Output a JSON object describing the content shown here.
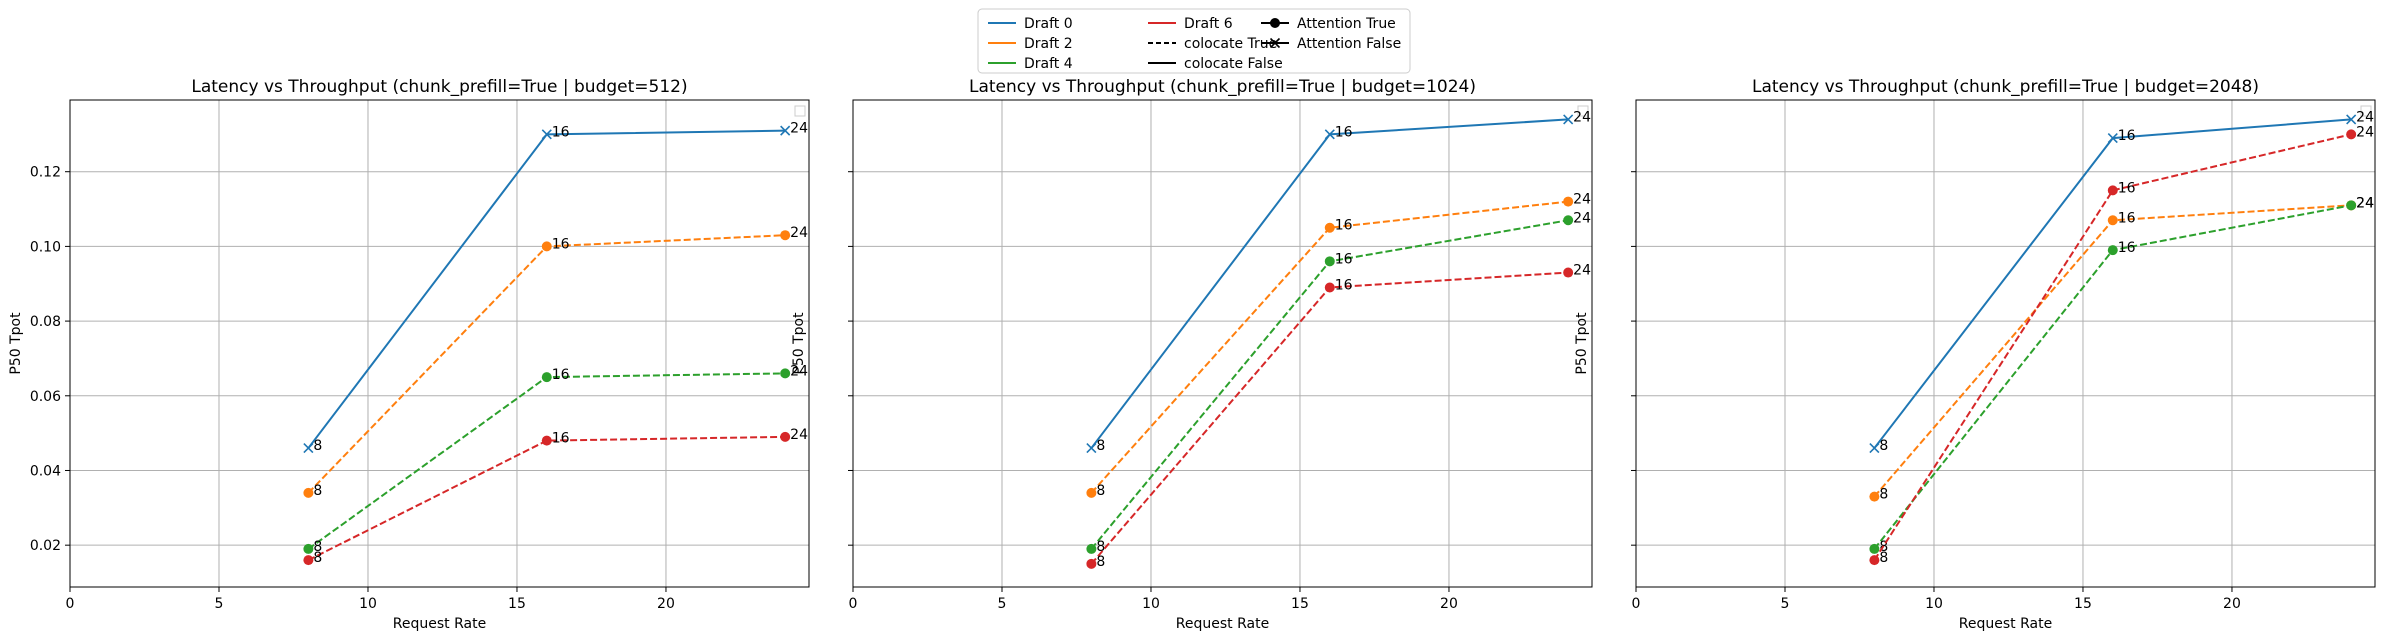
{
  "legend": {
    "placement": "top-center",
    "entries": [
      {
        "label": "Draft 0",
        "style": "line",
        "color": "#1f77b4"
      },
      {
        "label": "Draft 2",
        "style": "line",
        "color": "#ff7f0e"
      },
      {
        "label": "Draft 4",
        "style": "line",
        "color": "#2ca02c"
      },
      {
        "label": "Draft 6",
        "style": "line",
        "color": "#d62728"
      },
      {
        "label": "colocate True",
        "style": "dashed",
        "color": "#000000"
      },
      {
        "label": "colocate False",
        "style": "solid",
        "color": "#000000"
      },
      {
        "label": "Attention True",
        "style": "marker-circle",
        "color": "#000000"
      },
      {
        "label": "Attention False",
        "style": "marker-x",
        "color": "#000000"
      }
    ]
  },
  "chart_data": [
    {
      "type": "line",
      "title": "Latency vs Throughput (chunk_prefill=True | budget=512)",
      "xlabel": "Request Rate",
      "ylabel": "P50 Tpot",
      "xlim": [
        0,
        24.8
      ],
      "ylim": [
        0.0088,
        0.1392
      ],
      "xticks": [
        0,
        5,
        10,
        15,
        20
      ],
      "yticks": [
        0.02,
        0.04,
        0.06,
        0.08,
        0.1,
        0.12
      ],
      "ytick_labels": [
        "0.02",
        "0.04",
        "0.06",
        "0.08",
        "0.10",
        "0.12"
      ],
      "grid": true,
      "series": [
        {
          "name": "Draft 0",
          "color": "#1f77b4",
          "linestyle": "solid",
          "marker": "x",
          "x": [
            8,
            16,
            24
          ],
          "y": [
            0.046,
            0.13,
            0.131
          ],
          "labels": [
            "8",
            "16",
            "24"
          ]
        },
        {
          "name": "Draft 2",
          "color": "#ff7f0e",
          "linestyle": "dashed",
          "marker": "o",
          "x": [
            8,
            16,
            24
          ],
          "y": [
            0.034,
            0.1,
            0.103
          ],
          "labels": [
            "8",
            "16",
            "24"
          ]
        },
        {
          "name": "Draft 4",
          "color": "#2ca02c",
          "linestyle": "dashed",
          "marker": "o",
          "x": [
            8,
            16,
            24
          ],
          "y": [
            0.019,
            0.065,
            0.066
          ],
          "labels": [
            "8",
            "16",
            "24"
          ]
        },
        {
          "name": "Draft 6",
          "color": "#d62728",
          "linestyle": "dashed",
          "marker": "o",
          "x": [
            8,
            16,
            24
          ],
          "y": [
            0.016,
            0.048,
            0.049
          ],
          "labels": [
            "8",
            "16",
            "24"
          ]
        }
      ]
    },
    {
      "type": "line",
      "title": "Latency vs Throughput (chunk_prefill=True | budget=1024)",
      "xlabel": "Request Rate",
      "ylabel": "P50 Tpot",
      "xlim": [
        0,
        24.8
      ],
      "ylim": [
        0.0088,
        0.1392
      ],
      "xticks": [
        0,
        5,
        10,
        15,
        20
      ],
      "yticks": [
        0.02,
        0.04,
        0.06,
        0.08,
        0.1,
        0.12
      ],
      "ytick_labels": [],
      "grid": true,
      "series": [
        {
          "name": "Draft 0",
          "color": "#1f77b4",
          "linestyle": "solid",
          "marker": "x",
          "x": [
            8,
            16,
            24
          ],
          "y": [
            0.046,
            0.13,
            0.134
          ],
          "labels": [
            "8",
            "16",
            "24"
          ]
        },
        {
          "name": "Draft 2",
          "color": "#ff7f0e",
          "linestyle": "dashed",
          "marker": "o",
          "x": [
            8,
            16,
            24
          ],
          "y": [
            0.034,
            0.105,
            0.112
          ],
          "labels": [
            "8",
            "16",
            "24"
          ]
        },
        {
          "name": "Draft 4",
          "color": "#2ca02c",
          "linestyle": "dashed",
          "marker": "o",
          "x": [
            8,
            16,
            24
          ],
          "y": [
            0.019,
            0.096,
            0.107
          ],
          "labels": [
            "8",
            "16",
            "24"
          ]
        },
        {
          "name": "Draft 6",
          "color": "#d62728",
          "linestyle": "dashed",
          "marker": "o",
          "x": [
            8,
            16,
            24
          ],
          "y": [
            0.015,
            0.089,
            0.093
          ],
          "labels": [
            "8",
            "16",
            "24"
          ]
        }
      ]
    },
    {
      "type": "line",
      "title": "Latency vs Throughput (chunk_prefill=True | budget=2048)",
      "xlabel": "Request Rate",
      "ylabel": "P50 Tpot",
      "xlim": [
        0,
        24.8
      ],
      "ylim": [
        0.0088,
        0.1392
      ],
      "xticks": [
        0,
        5,
        10,
        15,
        20
      ],
      "yticks": [
        0.02,
        0.04,
        0.06,
        0.08,
        0.1,
        0.12
      ],
      "ytick_labels": [],
      "grid": true,
      "series": [
        {
          "name": "Draft 0",
          "color": "#1f77b4",
          "linestyle": "solid",
          "marker": "x",
          "x": [
            8,
            16,
            24
          ],
          "y": [
            0.046,
            0.129,
            0.134
          ],
          "labels": [
            "8",
            "16",
            "24"
          ]
        },
        {
          "name": "Draft 2",
          "color": "#ff7f0e",
          "linestyle": "dashed",
          "marker": "o",
          "x": [
            8,
            16,
            24
          ],
          "y": [
            0.033,
            0.107,
            0.111
          ],
          "labels": [
            "8",
            "16",
            "24"
          ]
        },
        {
          "name": "Draft 4",
          "color": "#2ca02c",
          "linestyle": "dashed",
          "marker": "o",
          "x": [
            8,
            16,
            24
          ],
          "y": [
            0.019,
            0.099,
            0.111
          ],
          "labels": [
            "8",
            "16",
            "24"
          ]
        },
        {
          "name": "Draft 6",
          "color": "#d62728",
          "linestyle": "dashed",
          "marker": "o",
          "x": [
            8,
            16,
            24
          ],
          "y": [
            0.016,
            0.115,
            0.13
          ],
          "labels": [
            "8",
            "16",
            "24"
          ]
        }
      ]
    }
  ]
}
